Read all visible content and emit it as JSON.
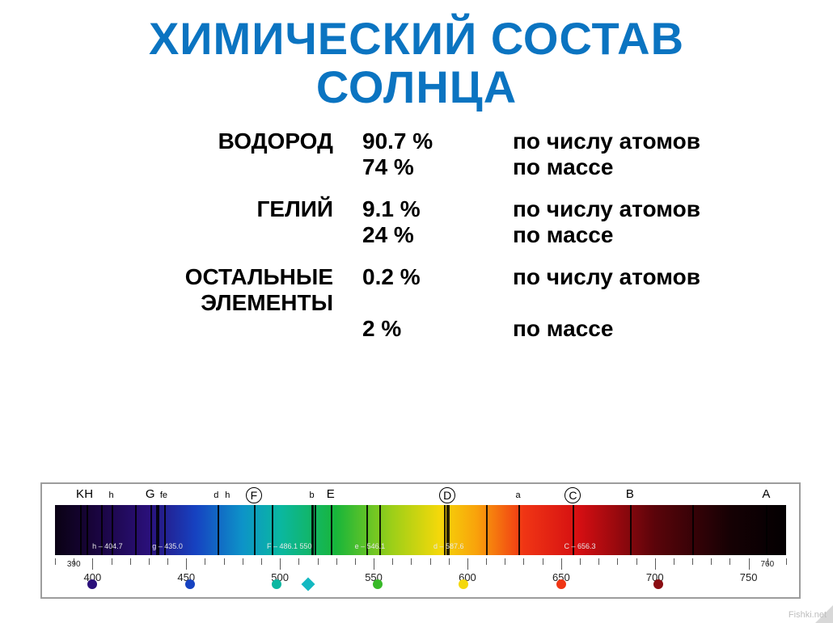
{
  "title_line1": "ХИМИЧЕСКИЙ СОСТАВ",
  "title_line2": "СОЛНЦА",
  "title_color": "#0b74c1",
  "title_fontsize": 56,
  "body_fontsize": 28,
  "body_color": "#000000",
  "composition": [
    {
      "name": "ВОДОРОД",
      "rows": [
        {
          "pct": "90.7 %",
          "note": "по числу атомов"
        },
        {
          "pct": "74 %",
          "note": "по массе"
        }
      ]
    },
    {
      "name": "ГЕЛИЙ",
      "rows": [
        {
          "pct": "9.1 %",
          "note": "по числу атомов"
        },
        {
          "pct": "24 %",
          "note": "по массе"
        }
      ]
    },
    {
      "name": "ОСТАЛЬНЫЕ ЭЛЕМЕНТЫ",
      "rows": [
        {
          "pct": "0.2 %",
          "note": "по числу атомов"
        },
        {
          "pct": "2 %",
          "note": "по массе"
        }
      ]
    }
  ],
  "spectrum": {
    "range_nm": [
      380,
      770
    ],
    "gradient_stops": [
      {
        "nm": 380,
        "color": "#0a0214"
      },
      {
        "nm": 400,
        "color": "#18043a"
      },
      {
        "nm": 430,
        "color": "#2a107a"
      },
      {
        "nm": 455,
        "color": "#1642c1"
      },
      {
        "nm": 480,
        "color": "#0d93c8"
      },
      {
        "nm": 500,
        "color": "#0ab7a1"
      },
      {
        "nm": 530,
        "color": "#18b53a"
      },
      {
        "nm": 560,
        "color": "#9dcf18"
      },
      {
        "nm": 585,
        "color": "#f4d80a"
      },
      {
        "nm": 605,
        "color": "#f9a20b"
      },
      {
        "nm": 630,
        "color": "#f03514"
      },
      {
        "nm": 660,
        "color": "#d40e12"
      },
      {
        "nm": 700,
        "color": "#5a040a"
      },
      {
        "nm": 740,
        "color": "#160104"
      },
      {
        "nm": 770,
        "color": "#030002"
      }
    ],
    "absorption_lines_nm": [
      393.4,
      396.8,
      404.7,
      410.2,
      422.7,
      430.8,
      434.0,
      435.0,
      438.4,
      466.8,
      486.1,
      495.8,
      516.7,
      517.3,
      518.4,
      527,
      546.1,
      553,
      587.6,
      589.0,
      589.6,
      610,
      627.0,
      656.3,
      686.7,
      720,
      759.4
    ],
    "fraunhofer_labels": [
      {
        "text": "K",
        "nm": 393.4,
        "circled": false
      },
      {
        "text": "H",
        "nm": 398,
        "circled": false
      },
      {
        "text": "h",
        "nm": 410,
        "circled": false,
        "small": true
      },
      {
        "text": "G",
        "nm": 430.8,
        "circled": false
      },
      {
        "text": "fe",
        "nm": 438,
        "circled": false,
        "small": true
      },
      {
        "text": "d",
        "nm": 466,
        "circled": false,
        "small": true
      },
      {
        "text": "h",
        "nm": 472,
        "circled": false,
        "small": true
      },
      {
        "text": "F",
        "nm": 486.1,
        "circled": true
      },
      {
        "text": "b",
        "nm": 517,
        "circled": false,
        "small": true
      },
      {
        "text": "E",
        "nm": 527,
        "circled": false
      },
      {
        "text": "D",
        "nm": 589.3,
        "circled": true
      },
      {
        "text": "a",
        "nm": 627,
        "circled": false,
        "small": true
      },
      {
        "text": "C",
        "nm": 656.3,
        "circled": true
      },
      {
        "text": "B",
        "nm": 686.7,
        "circled": false
      },
      {
        "text": "A",
        "nm": 759.4,
        "circled": false
      }
    ],
    "inband_wavelength_labels": [
      {
        "text": "h – 404.7",
        "nm": 408
      },
      {
        "text": "g – 435.0",
        "nm": 440
      },
      {
        "text": "F – 486.1  550",
        "nm": 505
      },
      {
        "text": "e – 546.1",
        "nm": 548
      },
      {
        "text": "d – 587.6",
        "nm": 590
      },
      {
        "text": "C – 656.3",
        "nm": 660
      }
    ],
    "ruler": {
      "major_ticks_nm": [
        400,
        450,
        500,
        550,
        600,
        650,
        700,
        750
      ],
      "minor_step_nm": 10,
      "side_labels_nm": [
        390,
        760
      ]
    },
    "markers": [
      {
        "shape": "dot",
        "nm": 400,
        "color": "#2a107a"
      },
      {
        "shape": "dot",
        "nm": 452,
        "color": "#1642c1"
      },
      {
        "shape": "dot",
        "nm": 498,
        "color": "#0ab7a1"
      },
      {
        "shape": "diamond",
        "nm": 515,
        "color": "#13b8c1"
      },
      {
        "shape": "dot",
        "nm": 552,
        "color": "#38b928"
      },
      {
        "shape": "dot",
        "nm": 598,
        "color": "#f4d80a"
      },
      {
        "shape": "dot",
        "nm": 650,
        "color": "#f03514"
      },
      {
        "shape": "dot",
        "nm": 702,
        "color": "#8a0d12"
      }
    ],
    "border_color": "#9d9d9d"
  },
  "watermark": "Fishki.net"
}
